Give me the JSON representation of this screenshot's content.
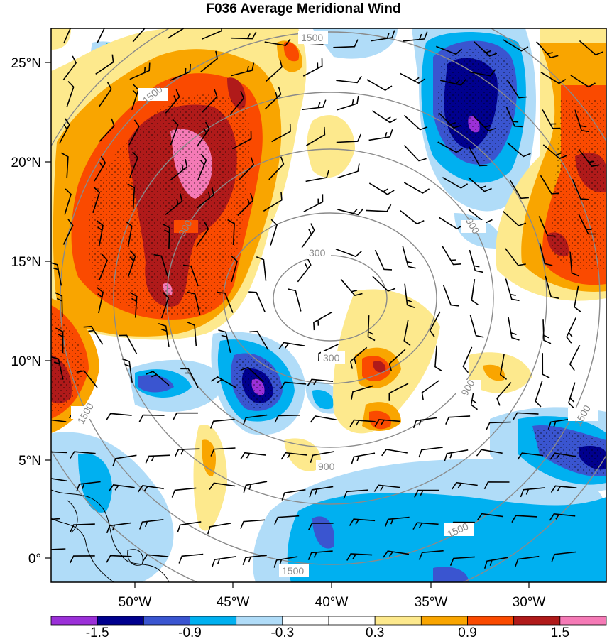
{
  "title": "F036 Average Meridional Wind",
  "lat_ticks": [
    "25°N",
    "20°N",
    "15°N",
    "10°N",
    "5°N",
    "0°"
  ],
  "lon_ticks": [
    "50°W",
    "45°W",
    "40°W",
    "35°W",
    "30°W"
  ],
  "colorbar": {
    "colors": [
      "#9b30d8",
      "#00008e",
      "#3a55d0",
      "#00b0f0",
      "#b0dcf8",
      "#ffffff",
      "#ffffff",
      "#fde98d",
      "#f9a500",
      "#fa4a00",
      "#b01a1a",
      "#f57ab6"
    ],
    "labels": [
      "-1.5",
      "-0.9",
      "-0.3",
      "0.3",
      "0.9",
      "1.5"
    ]
  },
  "contour_labels": [
    "1500",
    "1500",
    "900",
    "900",
    "300",
    "300",
    "900",
    "900",
    "1500",
    "1500",
    "1500",
    "1500"
  ]
}
